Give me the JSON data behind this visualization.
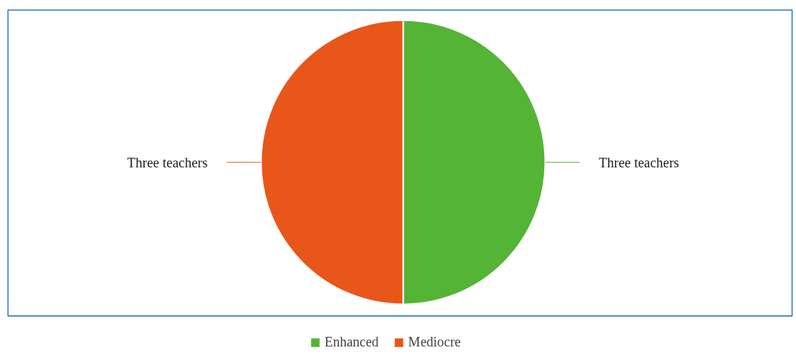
{
  "chart_data": {
    "type": "pie",
    "categories": [
      "Enhanced",
      "Mediocre"
    ],
    "values": [
      50,
      50
    ],
    "colors": [
      "#54b435",
      "#e8561a"
    ],
    "value_labels": [
      "Three teachers",
      "Three teachers"
    ],
    "legend": "bottom"
  }
}
